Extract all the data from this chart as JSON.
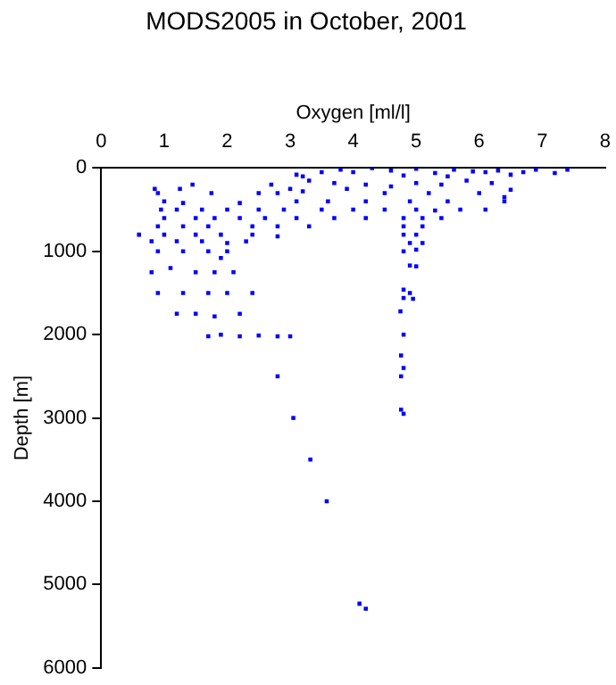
{
  "chart_data": {
    "type": "scatter",
    "title": "MODS2005 in October, 2001",
    "xlabel": "Oxygen [ml/l]",
    "ylabel": "Depth [m]",
    "x": [
      3.2,
      3.5,
      3.8,
      4.0,
      4.3,
      4.6,
      5.0,
      5.3,
      5.6,
      5.9,
      6.1,
      6.3,
      6.5,
      6.7,
      6.9,
      7.2,
      7.4,
      3.1,
      4.8,
      5.5,
      3.3,
      3.7,
      4.2,
      4.6,
      5.0,
      5.4,
      5.8,
      6.2,
      6.5,
      6.4,
      0.85,
      1.25,
      1.45,
      1.75,
      2.7,
      3.0,
      3.9,
      0.9,
      2.5,
      2.8,
      3.2,
      4.5,
      5.2,
      6.0,
      1.0,
      1.3,
      2.2,
      3.1,
      3.6,
      4.2,
      4.9,
      5.5,
      6.4,
      0.95,
      1.2,
      1.6,
      2.0,
      2.5,
      2.9,
      3.5,
      4.0,
      4.5,
      5.0,
      5.3,
      5.7,
      6.1,
      1.0,
      1.5,
      1.8,
      2.2,
      2.6,
      3.1,
      3.7,
      4.2,
      4.8,
      5.1,
      5.4,
      0.9,
      1.3,
      1.7,
      2.4,
      2.8,
      3.3,
      4.8,
      5.1,
      0.6,
      1.0,
      1.5,
      1.9,
      2.4,
      2.8,
      4.8,
      5.0,
      0.8,
      1.2,
      1.6,
      2.0,
      2.3,
      4.9,
      5.1,
      0.9,
      1.3,
      1.7,
      2.0,
      4.8,
      5.0,
      1.9,
      0.8,
      1.1,
      1.5,
      1.8,
      2.1,
      4.9,
      5.0,
      0.9,
      1.3,
      1.7,
      2.0,
      2.4,
      4.8,
      4.9,
      4.8,
      4.95,
      1.2,
      1.5,
      1.8,
      2.2,
      4.75,
      1.7,
      1.9,
      2.2,
      2.5,
      2.8,
      3.0,
      4.8,
      4.76,
      4.8,
      4.76,
      4.76,
      4.8,
      2.8,
      3.05,
      3.32,
      3.58,
      4.1,
      4.2
    ],
    "values": [
      100,
      50,
      20,
      50,
      0,
      30,
      10,
      60,
      20,
      40,
      50,
      30,
      80,
      50,
      20,
      60,
      20,
      80,
      90,
      100,
      150,
      180,
      200,
      220,
      180,
      200,
      150,
      180,
      260,
      350,
      250,
      250,
      200,
      300,
      200,
      250,
      250,
      300,
      300,
      300,
      280,
      300,
      300,
      300,
      400,
      420,
      420,
      400,
      400,
      400,
      400,
      400,
      400,
      500,
      500,
      500,
      500,
      500,
      500,
      500,
      500,
      500,
      500,
      510,
      500,
      500,
      600,
      600,
      600,
      600,
      600,
      600,
      600,
      600,
      600,
      600,
      600,
      700,
      700,
      700,
      700,
      700,
      700,
      700,
      700,
      800,
      800,
      800,
      800,
      800,
      820,
      800,
      800,
      880,
      880,
      880,
      900,
      880,
      900,
      900,
      1000,
      1000,
      1000,
      1000,
      1000,
      980,
      1080,
      1250,
      1200,
      1250,
      1250,
      1250,
      1170,
      1180,
      1500,
      1500,
      1500,
      1500,
      1500,
      1460,
      1500,
      1560,
      1570,
      1750,
      1750,
      1780,
      1750,
      1720,
      2020,
      2000,
      2020,
      2010,
      2020,
      2020,
      2000,
      2250,
      2400,
      2500,
      2900,
      2950,
      2500,
      3000,
      3500,
      4000,
      5230,
      5290
    ],
    "color": "#0000ff",
    "marker": "square",
    "xlim": [
      0,
      8
    ],
    "ylim": [
      6000,
      0
    ],
    "xticks": [
      0,
      1,
      2,
      3,
      4,
      5,
      6,
      7,
      8
    ],
    "yticks": [
      0,
      1000,
      2000,
      3000,
      4000,
      5000,
      6000
    ],
    "grid": false,
    "legend": false
  }
}
